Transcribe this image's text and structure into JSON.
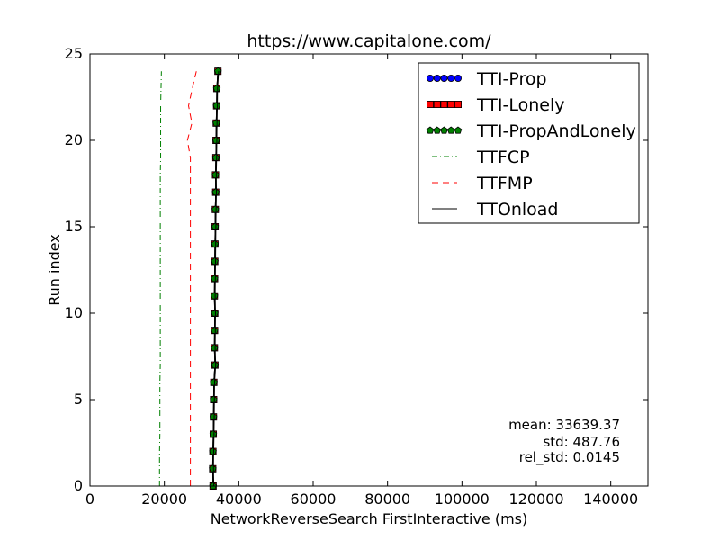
{
  "chart_data": {
    "type": "line",
    "title": "https://www.capitalone.com/",
    "xlabel": "NetworkReverseSearch FirstInteractive (ms)",
    "ylabel": "Run index",
    "xlim": [
      0,
      150000
    ],
    "ylim": [
      0,
      25
    ],
    "x_ticks": [
      0,
      20000,
      40000,
      60000,
      80000,
      100000,
      120000,
      140000
    ],
    "x_tick_labels": [
      "0",
      "20000",
      "40000",
      "60000",
      "80000",
      "100000",
      "120000",
      "140000"
    ],
    "y_ticks": [
      0,
      5,
      10,
      15,
      20,
      25
    ],
    "y_tick_labels": [
      "0",
      "5",
      "10",
      "15",
      "20",
      "25"
    ],
    "grid": false,
    "legend_position": "top-right",
    "y": [
      0,
      1,
      2,
      3,
      4,
      5,
      6,
      7,
      8,
      9,
      10,
      11,
      12,
      13,
      14,
      15,
      16,
      17,
      18,
      19,
      20,
      21,
      22,
      23,
      24
    ],
    "series": [
      {
        "name": "TTI-Prop",
        "style": "marker-circle",
        "color": "#0000ff",
        "x": [
          33100,
          33000,
          33050,
          33150,
          33200,
          33250,
          33300,
          33600,
          33450,
          33500,
          33550,
          33450,
          33500,
          33550,
          33600,
          33650,
          33700,
          33800,
          33750,
          33850,
          33900,
          33950,
          34050,
          34100,
          34400
        ]
      },
      {
        "name": "TTI-Lonely",
        "style": "marker-square",
        "color": "#ff0000",
        "x": [
          33100,
          33000,
          33050,
          33150,
          33200,
          33250,
          33300,
          33600,
          33450,
          33500,
          33550,
          33450,
          33500,
          33550,
          33600,
          33650,
          33700,
          33800,
          33750,
          33850,
          33900,
          33950,
          34050,
          34100,
          34400
        ]
      },
      {
        "name": "TTI-PropAndLonely",
        "style": "marker-pentagon",
        "color": "#008000",
        "x": [
          33100,
          33000,
          33050,
          33150,
          33200,
          33250,
          33300,
          33600,
          33450,
          33500,
          33550,
          33450,
          33500,
          33550,
          33600,
          33650,
          33700,
          33800,
          33750,
          33850,
          33900,
          33950,
          34050,
          34100,
          34400
        ]
      },
      {
        "name": "TTFCP",
        "style": "dash-dot",
        "color": "#008000",
        "x": [
          18700,
          18700,
          18700,
          18800,
          18800,
          18800,
          18800,
          18900,
          18900,
          18900,
          18900,
          18900,
          18900,
          18900,
          18900,
          18900,
          18900,
          18900,
          18900,
          19000,
          19000,
          19000,
          19000,
          19100,
          19200
        ]
      },
      {
        "name": "TTFMP",
        "style": "dashed",
        "color": "#ff0000",
        "x": [
          27000,
          27000,
          27000,
          27000,
          27000,
          27000,
          27000,
          27000,
          27000,
          27000,
          27000,
          27000,
          27000,
          27000,
          27000,
          27000,
          27000,
          27000,
          27000,
          27000,
          26200,
          27400,
          26500,
          27500,
          28600
        ]
      },
      {
        "name": "TTOnload",
        "style": "solid",
        "color": "#000000",
        "x": [
          33300,
          33200,
          33250,
          33350,
          33400,
          33450,
          33500,
          33800,
          33650,
          33700,
          33750,
          33650,
          33700,
          33750,
          33800,
          33850,
          33900,
          34000,
          33950,
          34050,
          34100,
          34150,
          34250,
          34300,
          34600
        ]
      }
    ],
    "stats": {
      "mean": "mean: 33639.37",
      "std": "std: 487.76",
      "rel_std": "rel_std: 0.0145"
    }
  }
}
